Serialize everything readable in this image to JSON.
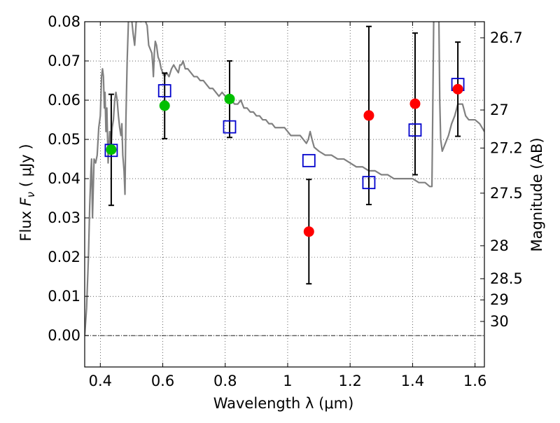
{
  "chart_data": {
    "type": "scatter",
    "xlabel": "Wavelength  λ (μm)",
    "ylabel_left_prefix": "Flux  ",
    "ylabel_left_symbol": "F",
    "ylabel_left_subscript": "ν",
    "ylabel_left_suffix": "  (  μJy  )",
    "ylabel_right": "Magnitude (AB)",
    "xlim": [
      0.35,
      1.63
    ],
    "ylim": [
      -0.008,
      0.08
    ],
    "x_ticks": [
      {
        "value": 0.4,
        "label": "0.4"
      },
      {
        "value": 0.6,
        "label": "0.6"
      },
      {
        "value": 0.8,
        "label": "0.8"
      },
      {
        "value": 1.0,
        "label": "1"
      },
      {
        "value": 1.2,
        "label": "1.2"
      },
      {
        "value": 1.4,
        "label": "1.4"
      },
      {
        "value": 1.6,
        "label": "1.6"
      }
    ],
    "y_ticks": [
      {
        "value": 0.0,
        "label": "0.00"
      },
      {
        "value": 0.01,
        "label": "0.01"
      },
      {
        "value": 0.02,
        "label": "0.02"
      },
      {
        "value": 0.03,
        "label": "0.03"
      },
      {
        "value": 0.04,
        "label": "0.04"
      },
      {
        "value": 0.05,
        "label": "0.05"
      },
      {
        "value": 0.06,
        "label": "0.06"
      },
      {
        "value": 0.07,
        "label": "0.07"
      },
      {
        "value": 0.08,
        "label": "0.08"
      }
    ],
    "mag_ticks": [
      {
        "flux": 0.0759,
        "label": "26.7"
      },
      {
        "flux": 0.0575,
        "label": "27"
      },
      {
        "flux": 0.0478,
        "label": "27.2"
      },
      {
        "flux": 0.0363,
        "label": "27.5"
      },
      {
        "flux": 0.0229,
        "label": "28"
      },
      {
        "flux": 0.0145,
        "label": "28.5"
      },
      {
        "flux": 0.0091,
        "label": "29"
      },
      {
        "flux": 0.0036,
        "label": "30"
      }
    ],
    "colors": {
      "sed": "#808080",
      "observed_blue_band": "#00bf00",
      "observed_red_band": "#ff0000",
      "model": "#0000cc",
      "errorbar": "#000000",
      "zero_line": "#000000",
      "grid": "#000000"
    },
    "series": [
      {
        "name": "observed_green",
        "color": "#00bf00",
        "points": [
          {
            "x": 0.435,
            "y": 0.0474,
            "ylo": 0.0332,
            "yhi": 0.0615
          },
          {
            "x": 0.606,
            "y": 0.0586,
            "ylo": 0.0502,
            "yhi": 0.0669
          },
          {
            "x": 0.814,
            "y": 0.0603,
            "ylo": 0.0505,
            "yhi": 0.07
          }
        ]
      },
      {
        "name": "observed_red",
        "color": "#ff0000",
        "points": [
          {
            "x": 1.068,
            "y": 0.0265,
            "ylo": 0.0132,
            "yhi": 0.0398
          },
          {
            "x": 1.26,
            "y": 0.0561,
            "ylo": 0.0334,
            "yhi": 0.0788
          },
          {
            "x": 1.408,
            "y": 0.0591,
            "ylo": 0.041,
            "yhi": 0.0771
          },
          {
            "x": 1.545,
            "y": 0.0628,
            "ylo": 0.0508,
            "yhi": 0.0748
          }
        ]
      },
      {
        "name": "model_photometry",
        "color": "#0000cc",
        "marker": "open-square",
        "points": [
          {
            "x": 0.435,
            "y": 0.0472
          },
          {
            "x": 0.606,
            "y": 0.0624
          },
          {
            "x": 0.814,
            "y": 0.0532
          },
          {
            "x": 1.068,
            "y": 0.0446
          },
          {
            "x": 1.26,
            "y": 0.039
          },
          {
            "x": 1.408,
            "y": 0.0524
          },
          {
            "x": 1.545,
            "y": 0.064
          }
        ]
      }
    ],
    "sed_curve": [
      [
        0.35,
        0.0
      ],
      [
        0.356,
        0.007
      ],
      [
        0.362,
        0.02
      ],
      [
        0.366,
        0.033
      ],
      [
        0.37,
        0.042
      ],
      [
        0.372,
        0.045
      ],
      [
        0.375,
        0.03
      ],
      [
        0.38,
        0.045
      ],
      [
        0.385,
        0.044
      ],
      [
        0.39,
        0.046
      ],
      [
        0.395,
        0.053
      ],
      [
        0.4,
        0.056
      ],
      [
        0.404,
        0.066
      ],
      [
        0.407,
        0.068
      ],
      [
        0.41,
        0.066
      ],
      [
        0.413,
        0.058
      ],
      [
        0.415,
        0.062
      ],
      [
        0.418,
        0.052
      ],
      [
        0.421,
        0.058
      ],
      [
        0.425,
        0.044
      ],
      [
        0.43,
        0.052
      ],
      [
        0.434,
        0.047
      ],
      [
        0.438,
        0.053
      ],
      [
        0.442,
        0.055
      ],
      [
        0.446,
        0.06
      ],
      [
        0.45,
        0.062
      ],
      [
        0.454,
        0.06
      ],
      [
        0.458,
        0.056
      ],
      [
        0.462,
        0.053
      ],
      [
        0.466,
        0.051
      ],
      [
        0.469,
        0.054
      ],
      [
        0.472,
        0.046
      ],
      [
        0.476,
        0.042
      ],
      [
        0.479,
        0.036
      ],
      [
        0.482,
        0.055
      ],
      [
        0.486,
        0.07
      ],
      [
        0.49,
        0.08
      ],
      [
        0.495,
        0.081
      ],
      [
        0.5,
        0.081
      ],
      [
        0.505,
        0.077
      ],
      [
        0.51,
        0.074
      ],
      [
        0.515,
        0.08
      ],
      [
        0.52,
        0.082
      ],
      [
        0.53,
        0.08
      ],
      [
        0.54,
        0.081
      ],
      [
        0.55,
        0.079
      ],
      [
        0.555,
        0.074
      ],
      [
        0.56,
        0.073
      ],
      [
        0.565,
        0.072
      ],
      [
        0.568,
        0.069
      ],
      [
        0.57,
        0.066
      ],
      [
        0.573,
        0.072
      ],
      [
        0.576,
        0.075
      ],
      [
        0.58,
        0.074
      ],
      [
        0.585,
        0.071
      ],
      [
        0.59,
        0.07
      ],
      [
        0.595,
        0.068
      ],
      [
        0.6,
        0.067
      ],
      [
        0.606,
        0.066
      ],
      [
        0.612,
        0.067
      ],
      [
        0.62,
        0.066
      ],
      [
        0.628,
        0.068
      ],
      [
        0.635,
        0.069
      ],
      [
        0.642,
        0.068
      ],
      [
        0.65,
        0.067
      ],
      [
        0.655,
        0.069
      ],
      [
        0.66,
        0.069
      ],
      [
        0.665,
        0.07
      ],
      [
        0.672,
        0.068
      ],
      [
        0.68,
        0.068
      ],
      [
        0.69,
        0.067
      ],
      [
        0.7,
        0.066
      ],
      [
        0.71,
        0.066
      ],
      [
        0.72,
        0.065
      ],
      [
        0.73,
        0.065
      ],
      [
        0.74,
        0.064
      ],
      [
        0.75,
        0.063
      ],
      [
        0.76,
        0.063
      ],
      [
        0.77,
        0.062
      ],
      [
        0.78,
        0.061
      ],
      [
        0.79,
        0.062
      ],
      [
        0.8,
        0.061
      ],
      [
        0.81,
        0.061
      ],
      [
        0.82,
        0.06
      ],
      [
        0.83,
        0.059
      ],
      [
        0.84,
        0.059
      ],
      [
        0.85,
        0.06
      ],
      [
        0.86,
        0.058
      ],
      [
        0.87,
        0.058
      ],
      [
        0.88,
        0.057
      ],
      [
        0.89,
        0.057
      ],
      [
        0.9,
        0.056
      ],
      [
        0.91,
        0.056
      ],
      [
        0.92,
        0.055
      ],
      [
        0.93,
        0.055
      ],
      [
        0.94,
        0.054
      ],
      [
        0.95,
        0.054
      ],
      [
        0.96,
        0.053
      ],
      [
        0.97,
        0.053
      ],
      [
        0.98,
        0.053
      ],
      [
        0.99,
        0.053
      ],
      [
        1.0,
        0.052
      ],
      [
        1.01,
        0.051
      ],
      [
        1.02,
        0.051
      ],
      [
        1.03,
        0.051
      ],
      [
        1.04,
        0.051
      ],
      [
        1.05,
        0.05
      ],
      [
        1.06,
        0.049
      ],
      [
        1.066,
        0.05
      ],
      [
        1.072,
        0.052
      ],
      [
        1.078,
        0.05
      ],
      [
        1.085,
        0.048
      ],
      [
        1.1,
        0.047
      ],
      [
        1.12,
        0.046
      ],
      [
        1.14,
        0.046
      ],
      [
        1.16,
        0.045
      ],
      [
        1.18,
        0.045
      ],
      [
        1.2,
        0.044
      ],
      [
        1.22,
        0.043
      ],
      [
        1.24,
        0.043
      ],
      [
        1.26,
        0.042
      ],
      [
        1.28,
        0.042
      ],
      [
        1.3,
        0.041
      ],
      [
        1.32,
        0.041
      ],
      [
        1.34,
        0.04
      ],
      [
        1.36,
        0.04
      ],
      [
        1.38,
        0.04
      ],
      [
        1.4,
        0.04
      ],
      [
        1.42,
        0.039
      ],
      [
        1.44,
        0.039
      ],
      [
        1.455,
        0.038
      ],
      [
        1.462,
        0.038
      ],
      [
        1.465,
        0.06
      ],
      [
        1.468,
        0.083
      ],
      [
        1.484,
        0.083
      ],
      [
        1.487,
        0.06
      ],
      [
        1.49,
        0.05
      ],
      [
        1.495,
        0.047
      ],
      [
        1.505,
        0.049
      ],
      [
        1.515,
        0.051
      ],
      [
        1.525,
        0.054
      ],
      [
        1.535,
        0.056
      ],
      [
        1.545,
        0.059
      ],
      [
        1.56,
        0.059
      ],
      [
        1.57,
        0.056
      ],
      [
        1.58,
        0.055
      ],
      [
        1.59,
        0.055
      ],
      [
        1.6,
        0.055
      ],
      [
        1.615,
        0.054
      ],
      [
        1.63,
        0.052
      ]
    ]
  }
}
